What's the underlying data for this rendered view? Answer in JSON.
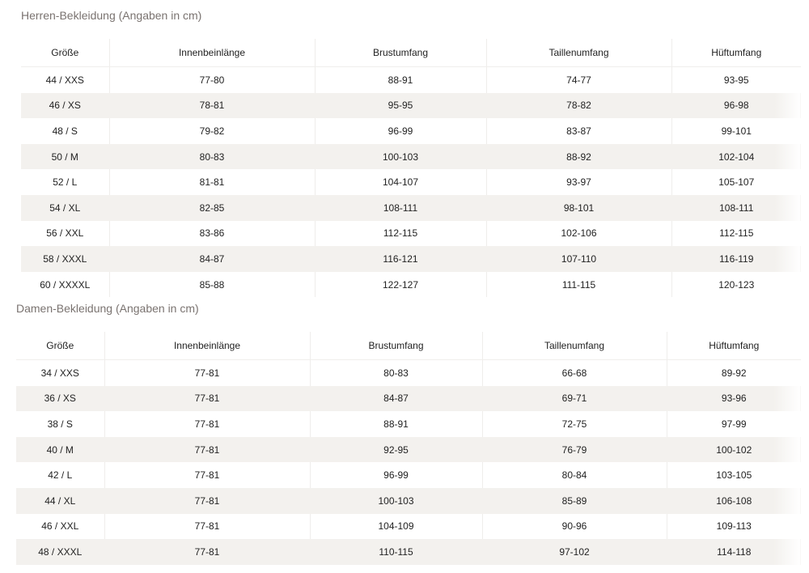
{
  "men": {
    "title": "Herren-Bekleidung (Angaben in cm)",
    "headers": [
      "Größe",
      "Innenbeinlänge",
      "Brustumfang",
      "Taillenumfang",
      "Hüftumfang"
    ],
    "rows": [
      [
        "44 / XXS",
        "77-80",
        "88-91",
        "74-77",
        "93-95"
      ],
      [
        "46 / XS",
        "78-81",
        "95-95",
        "78-82",
        "96-98"
      ],
      [
        "48 / S",
        "79-82",
        "96-99",
        "83-87",
        "99-101"
      ],
      [
        "50 / M",
        "80-83",
        "100-103",
        "88-92",
        "102-104"
      ],
      [
        "52 / L",
        "81-81",
        "104-107",
        "93-97",
        "105-107"
      ],
      [
        "54 / XL",
        "82-85",
        "108-111",
        "98-101",
        "108-111"
      ],
      [
        "56 / XXL",
        "83-86",
        "112-115",
        "102-106",
        "112-115"
      ],
      [
        "58 / XXXL",
        "84-87",
        "116-121",
        "107-110",
        "116-119"
      ],
      [
        "60 / XXXXL",
        "85-88",
        "122-127",
        "111-115",
        "120-123"
      ]
    ]
  },
  "women": {
    "title": "Damen-Bekleidung (Angaben in cm)",
    "headers": [
      "Größe",
      "Innenbeinlänge",
      "Brustumfang",
      "Taillenumfang",
      "Hüftumfang"
    ],
    "rows": [
      [
        "34 / XXS",
        "77-81",
        "80-83",
        "66-68",
        "89-92"
      ],
      [
        "36 / XS",
        "77-81",
        "84-87",
        "69-71",
        "93-96"
      ],
      [
        "38 / S",
        "77-81",
        "88-91",
        "72-75",
        "97-99"
      ],
      [
        "40 / M",
        "77-81",
        "92-95",
        "76-79",
        "100-102"
      ],
      [
        "42 / L",
        "77-81",
        "96-99",
        "80-84",
        "103-105"
      ],
      [
        "44 / XL",
        "77-81",
        "100-103",
        "85-89",
        "106-108"
      ],
      [
        "46 / XXL",
        "77-81",
        "104-109",
        "90-96",
        "109-113"
      ],
      [
        "48 / XXXL",
        "77-81",
        "110-115",
        "97-102",
        "114-118"
      ]
    ]
  },
  "colors": {
    "stripe": "#f3f1ee",
    "title": "#7a7370"
  }
}
